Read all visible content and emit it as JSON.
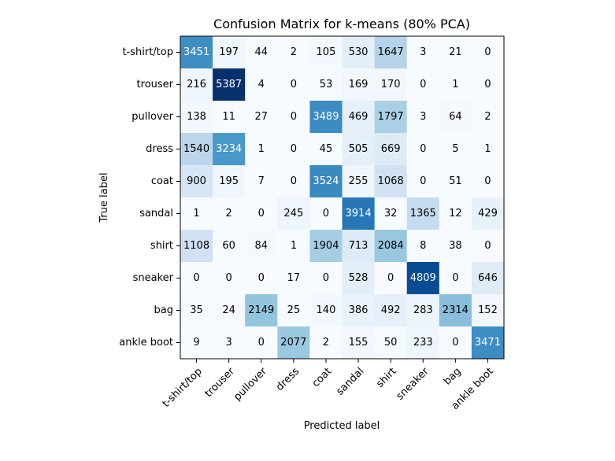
{
  "chart_data": {
    "type": "heatmap",
    "title": "Confusion Matrix for k-means (80% PCA)",
    "xlabel": "Predicted label",
    "ylabel": "True label",
    "x_categories": [
      "t-shirt/top",
      "trouser",
      "pullover",
      "dress",
      "coat",
      "sandal",
      "shirt",
      "sneaker",
      "bag",
      "ankle boot"
    ],
    "y_categories": [
      "t-shirt/top",
      "trouser",
      "pullover",
      "dress",
      "coat",
      "sandal",
      "shirt",
      "sneaker",
      "bag",
      "ankle boot"
    ],
    "values": [
      [
        3451,
        197,
        44,
        2,
        105,
        530,
        1647,
        3,
        21,
        0
      ],
      [
        216,
        5387,
        4,
        0,
        53,
        169,
        170,
        0,
        1,
        0
      ],
      [
        138,
        11,
        27,
        0,
        3489,
        469,
        1797,
        3,
        64,
        2
      ],
      [
        1540,
        3234,
        1,
        0,
        45,
        505,
        669,
        0,
        5,
        1
      ],
      [
        900,
        195,
        7,
        0,
        3524,
        255,
        1068,
        0,
        51,
        0
      ],
      [
        1,
        2,
        0,
        245,
        0,
        3914,
        32,
        1365,
        12,
        429
      ],
      [
        1108,
        60,
        84,
        1,
        1904,
        713,
        2084,
        8,
        38,
        0
      ],
      [
        0,
        0,
        0,
        17,
        0,
        528,
        0,
        4809,
        0,
        646
      ],
      [
        35,
        24,
        2149,
        25,
        140,
        386,
        492,
        283,
        2314,
        152
      ],
      [
        9,
        3,
        0,
        2077,
        2,
        155,
        50,
        233,
        0,
        3471
      ]
    ],
    "colormap": "Blues",
    "grid": false,
    "legend": "none"
  }
}
